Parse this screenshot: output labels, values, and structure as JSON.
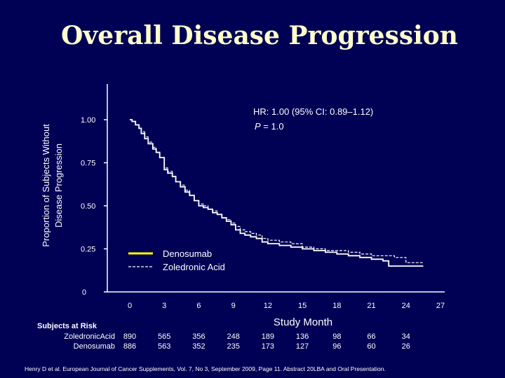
{
  "title": "Overall Disease Progression",
  "citation": "Henry D et al. European Journal of Cancer Supplements, Vol. 7, No 3, September 2009, Page 11. Abstract 20LBA and Oral Presentation.",
  "chart_data": {
    "type": "line",
    "title": "Overall Disease Progression",
    "xlabel": "Study Month",
    "ylabel": [
      "Proportion of Subjects Without",
      "Disease Progression"
    ],
    "xlim": [
      0,
      27
    ],
    "ylim": [
      0,
      1.0
    ],
    "x_ticks": [
      0,
      3,
      6,
      9,
      12,
      15,
      18,
      21,
      24,
      27
    ],
    "y_ticks": [
      "0",
      "0.25",
      "0.50",
      "0.75",
      "1.00"
    ],
    "grid": false,
    "legend_position": "center",
    "annotation": {
      "hr_line": "HR: 1.00 (95% CI: 0.89–1.12)",
      "p_label": "P",
      "p_value": " = 1.0"
    },
    "series": [
      {
        "name": "Denosumab",
        "style": "solid",
        "color": "#ffffff",
        "x": [
          0,
          0.2,
          0.5,
          0.8,
          1.0,
          1.3,
          1.6,
          2.0,
          2.3,
          2.6,
          3.0,
          3.3,
          3.7,
          4.0,
          4.4,
          4.8,
          5.2,
          5.6,
          6.0,
          6.4,
          6.8,
          7.2,
          7.6,
          8.0,
          8.4,
          8.8,
          9.2,
          9.6,
          10.0,
          10.5,
          11.0,
          11.5,
          12.0,
          13.0,
          14.0,
          15.0,
          16.0,
          17.0,
          18.0,
          19.0,
          20.0,
          21.0,
          22.0,
          22.5,
          23.0,
          24.0,
          25.5
        ],
        "y": [
          1.0,
          0.99,
          0.97,
          0.95,
          0.92,
          0.89,
          0.86,
          0.83,
          0.81,
          0.78,
          0.71,
          0.69,
          0.67,
          0.64,
          0.61,
          0.58,
          0.56,
          0.53,
          0.5,
          0.49,
          0.48,
          0.46,
          0.45,
          0.43,
          0.41,
          0.39,
          0.36,
          0.34,
          0.33,
          0.32,
          0.31,
          0.29,
          0.28,
          0.27,
          0.26,
          0.25,
          0.24,
          0.23,
          0.22,
          0.21,
          0.2,
          0.19,
          0.18,
          0.15,
          0.15,
          0.15,
          0.15
        ]
      },
      {
        "name": "Zoledronic Acid",
        "style": "dashed",
        "color": "#ffffff",
        "x": [
          0,
          0.2,
          0.5,
          0.8,
          1.0,
          1.3,
          1.6,
          2.0,
          2.3,
          2.6,
          3.0,
          3.3,
          3.7,
          4.0,
          4.4,
          4.8,
          5.2,
          5.6,
          6.0,
          6.4,
          6.8,
          7.2,
          7.6,
          8.0,
          8.4,
          8.8,
          9.2,
          9.6,
          10.0,
          10.5,
          11.0,
          11.5,
          12.0,
          13.0,
          14.0,
          15.0,
          16.0,
          17.0,
          18.0,
          19.0,
          20.0,
          21.0,
          22.0,
          23.0,
          24.0,
          25.0,
          25.5
        ],
        "y": [
          1.0,
          0.99,
          0.97,
          0.95,
          0.93,
          0.9,
          0.87,
          0.84,
          0.81,
          0.78,
          0.72,
          0.7,
          0.67,
          0.64,
          0.62,
          0.59,
          0.56,
          0.53,
          0.51,
          0.5,
          0.48,
          0.47,
          0.45,
          0.43,
          0.42,
          0.4,
          0.38,
          0.36,
          0.35,
          0.34,
          0.33,
          0.31,
          0.3,
          0.29,
          0.28,
          0.26,
          0.25,
          0.24,
          0.24,
          0.23,
          0.22,
          0.21,
          0.21,
          0.2,
          0.17,
          0.17,
          0.17
        ]
      }
    ]
  },
  "risk_table": {
    "header": "Subjects at Risk",
    "rows": [
      {
        "label": "ZoledronicAcid",
        "values": [
          "890",
          "565",
          "356",
          "248",
          "189",
          "136",
          "98",
          "66",
          "34"
        ]
      },
      {
        "label": "Denosumab",
        "values": [
          "886",
          "563",
          "352",
          "235",
          "173",
          "127",
          "96",
          "60",
          "26"
        ]
      }
    ]
  }
}
